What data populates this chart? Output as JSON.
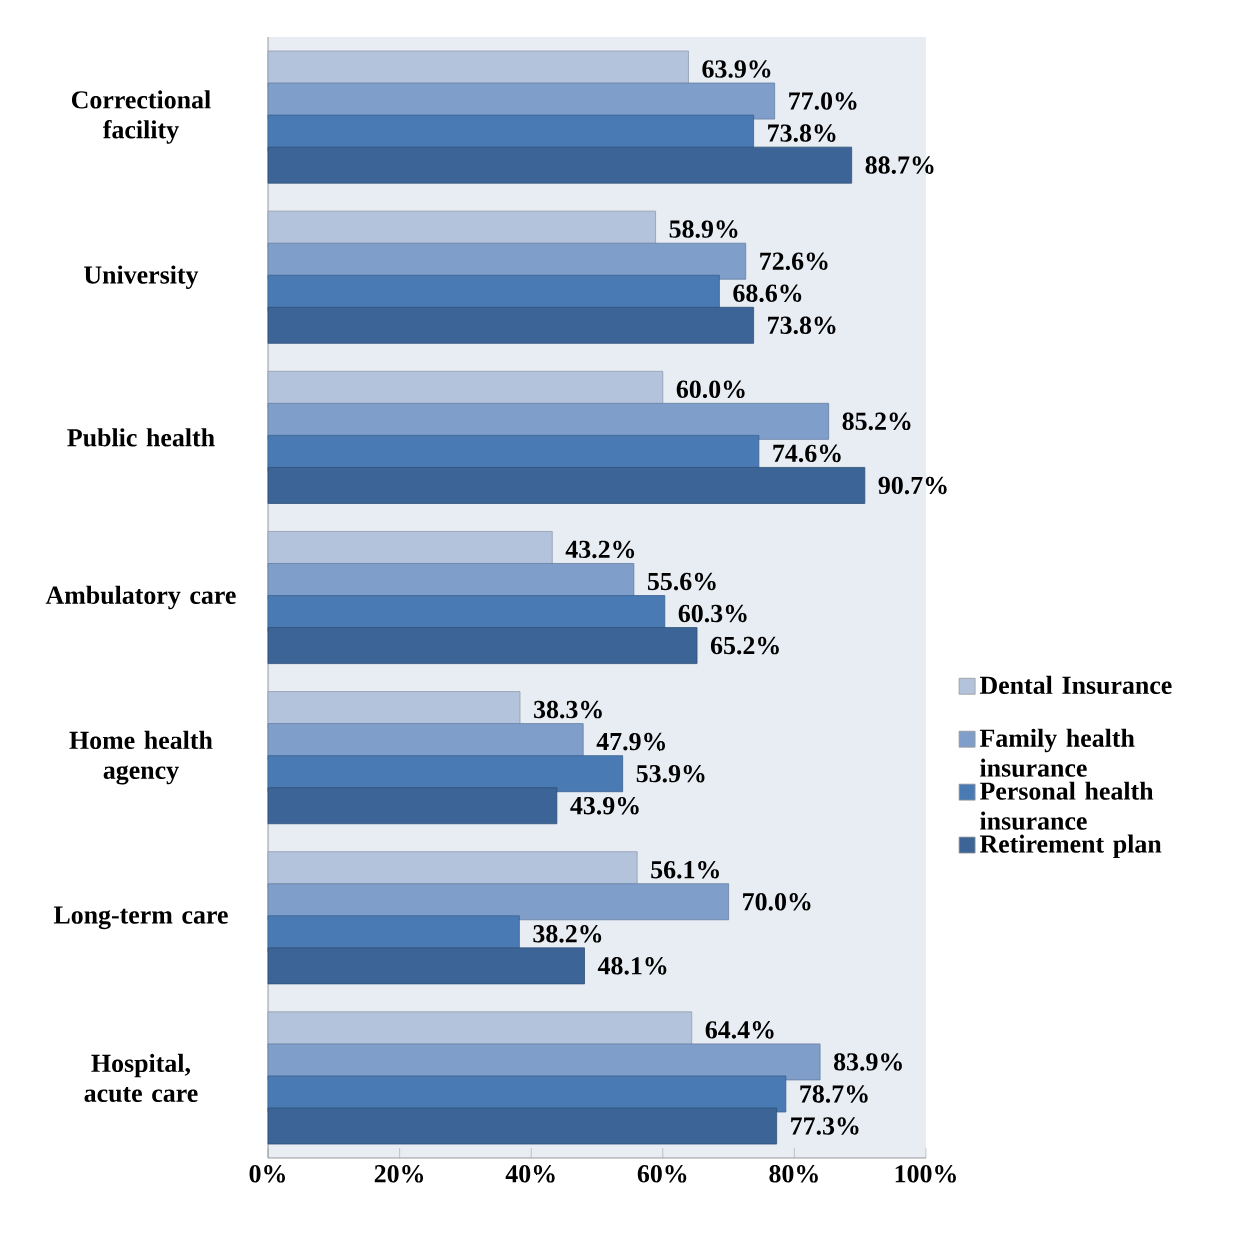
{
  "chart_data": {
    "type": "bar",
    "orientation": "horizontal",
    "categories": [
      "Correctional facility",
      "University",
      "Public health",
      "Ambulatory care",
      "Home health agency",
      "Long-term care",
      "Hospital, acute care"
    ],
    "series": [
      {
        "name": "Dental Insurance",
        "color": "#b4c3dc",
        "values": [
          63.9,
          58.9,
          60.0,
          43.2,
          38.3,
          56.1,
          64.4
        ],
        "value_labels": [
          "63.9%",
          "58.9%",
          "60.0%",
          "43.2%",
          "38.3%",
          "56.1%",
          "64.4%"
        ]
      },
      {
        "name": "Family health insurance",
        "color": "#7f9ec9",
        "values": [
          77.0,
          72.6,
          85.2,
          55.6,
          47.9,
          70.0,
          83.9
        ],
        "value_labels": [
          "77.0%",
          "72.6%",
          "85.2%",
          "55.6%",
          "47.9%",
          "70.0%",
          "83.9%"
        ]
      },
      {
        "name": "Personal health insurance",
        "color": "#4a7ab4",
        "values": [
          73.8,
          68.6,
          74.6,
          60.3,
          53.9,
          38.2,
          78.7
        ],
        "value_labels": [
          "73.8%",
          "68.6%",
          "74.6%",
          "60.3%",
          "53.9%",
          "38.2%",
          "78.7%"
        ]
      },
      {
        "name": "Retirement plan",
        "color": "#3c6496",
        "values": [
          88.7,
          73.8,
          90.7,
          65.2,
          43.9,
          48.1,
          77.3
        ],
        "value_labels": [
          "88.7%",
          "73.8%",
          "90.7%",
          "65.2%",
          "43.9%",
          "48.1%",
          "77.3%"
        ]
      }
    ],
    "xlim": [
      0,
      100
    ],
    "xticks": [
      {
        "value": 0,
        "label": "0%"
      },
      {
        "value": 20,
        "label": "20%"
      },
      {
        "value": 40,
        "label": "40%"
      },
      {
        "value": 60,
        "label": "60%"
      },
      {
        "value": 80,
        "label": "80%"
      },
      {
        "value": 100,
        "label": "100%"
      }
    ],
    "legend": "right"
  }
}
